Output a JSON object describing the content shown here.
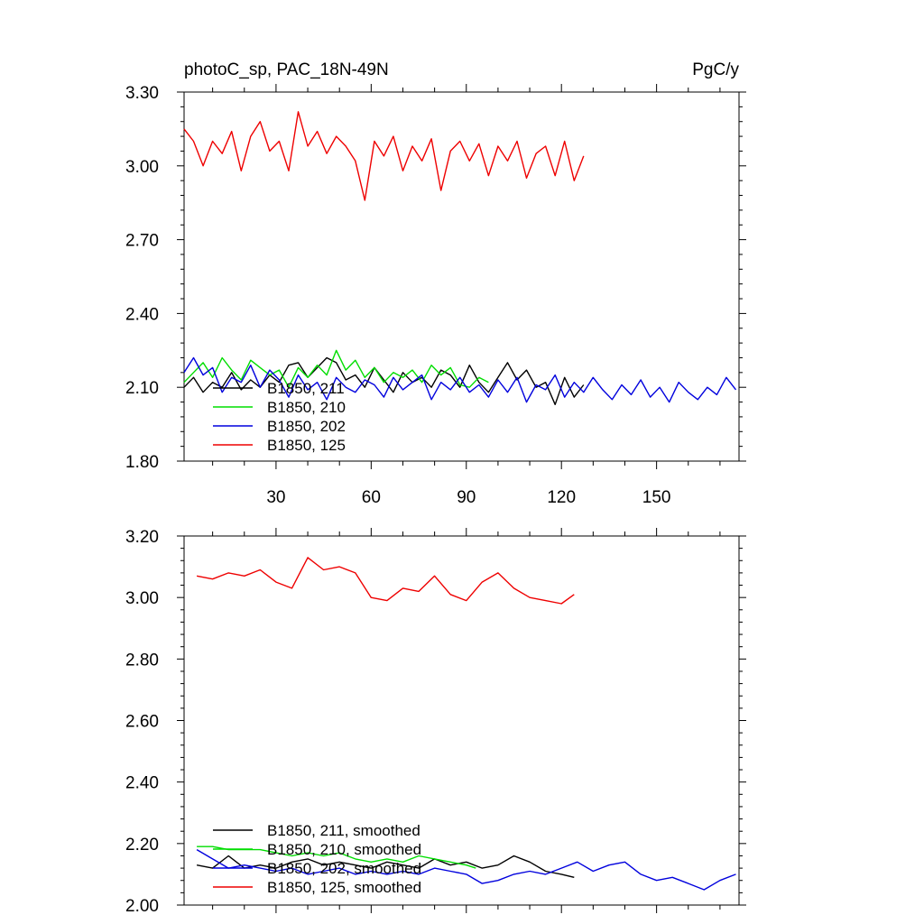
{
  "chart_data": [
    {
      "type": "line",
      "title_left": "photoC_sp, PAC_18N-49N",
      "title_right": "PgC/y",
      "xlabel": "",
      "ylabel": "",
      "xlim": [
        1,
        176
      ],
      "ylim": [
        1.8,
        3.3
      ],
      "yticks": [
        "1.80",
        "2.10",
        "2.40",
        "2.70",
        "3.00",
        "3.30"
      ],
      "xticks": [
        "30",
        "60",
        "90",
        "120",
        "150"
      ],
      "grid": false,
      "legend": "lower-left",
      "series": [
        {
          "name": "B1850, 211",
          "color": "#000000",
          "x": [
            1,
            4,
            7,
            10,
            13,
            16,
            19,
            22,
            25,
            28,
            31,
            34,
            37,
            40,
            43,
            46,
            49,
            52,
            55,
            58,
            61,
            64,
            67,
            70,
            73,
            76,
            79,
            82,
            85,
            88,
            91,
            94,
            97,
            100,
            103,
            106,
            109,
            112,
            115,
            118,
            121,
            124,
            127
          ],
          "y": [
            2.1,
            2.14,
            2.08,
            2.12,
            2.1,
            2.16,
            2.09,
            2.13,
            2.1,
            2.15,
            2.12,
            2.19,
            2.2,
            2.14,
            2.18,
            2.22,
            2.2,
            2.13,
            2.15,
            2.1,
            2.18,
            2.13,
            2.08,
            2.16,
            2.12,
            2.14,
            2.1,
            2.17,
            2.15,
            2.1,
            2.19,
            2.12,
            2.08,
            2.14,
            2.2,
            2.13,
            2.17,
            2.1,
            2.12,
            2.03,
            2.14,
            2.06,
            2.11
          ]
        },
        {
          "name": "B1850, 210",
          "color": "#00dd00",
          "x": [
            1,
            4,
            7,
            10,
            13,
            16,
            19,
            22,
            25,
            28,
            31,
            34,
            37,
            40,
            43,
            46,
            49,
            52,
            55,
            58,
            61,
            64,
            67,
            70,
            73,
            76,
            79,
            82,
            85,
            88,
            91,
            94,
            97
          ],
          "y": [
            2.12,
            2.16,
            2.2,
            2.14,
            2.22,
            2.17,
            2.13,
            2.21,
            2.18,
            2.15,
            2.17,
            2.1,
            2.18,
            2.14,
            2.19,
            2.15,
            2.25,
            2.17,
            2.21,
            2.14,
            2.18,
            2.12,
            2.16,
            2.14,
            2.17,
            2.12,
            2.19,
            2.15,
            2.18,
            2.11,
            2.1,
            2.14,
            2.12
          ]
        },
        {
          "name": "B1850, 202",
          "color": "#0000dd",
          "x": [
            1,
            4,
            7,
            10,
            13,
            16,
            19,
            22,
            25,
            28,
            31,
            34,
            37,
            40,
            43,
            46,
            49,
            52,
            55,
            58,
            61,
            64,
            67,
            70,
            73,
            76,
            79,
            82,
            85,
            88,
            91,
            94,
            97,
            100,
            103,
            106,
            109,
            112,
            115,
            118,
            121,
            124,
            127,
            130,
            133,
            136,
            139,
            142,
            145,
            148,
            151,
            154,
            157,
            160,
            163,
            166,
            169,
            172,
            175
          ],
          "y": [
            2.16,
            2.22,
            2.15,
            2.18,
            2.08,
            2.14,
            2.12,
            2.19,
            2.1,
            2.17,
            2.13,
            2.06,
            2.15,
            2.09,
            2.12,
            2.05,
            2.14,
            2.1,
            2.08,
            2.13,
            2.11,
            2.06,
            2.14,
            2.09,
            2.12,
            2.15,
            2.05,
            2.12,
            2.09,
            2.14,
            2.08,
            2.11,
            2.06,
            2.13,
            2.08,
            2.14,
            2.04,
            2.11,
            2.09,
            2.15,
            2.06,
            2.12,
            2.08,
            2.14,
            2.09,
            2.05,
            2.11,
            2.07,
            2.13,
            2.06,
            2.1,
            2.04,
            2.12,
            2.08,
            2.05,
            2.1,
            2.07,
            2.14,
            2.09
          ]
        },
        {
          "name": "B1850, 125",
          "color": "#ee0000",
          "x": [
            1,
            4,
            7,
            10,
            13,
            16,
            19,
            22,
            25,
            28,
            31,
            34,
            37,
            40,
            43,
            46,
            49,
            52,
            55,
            58,
            61,
            64,
            67,
            70,
            73,
            76,
            79,
            82,
            85,
            88,
            91,
            94,
            97,
            100,
            103,
            106,
            109,
            112,
            115,
            118,
            121,
            124,
            127
          ],
          "y": [
            3.15,
            3.1,
            3.0,
            3.1,
            3.05,
            3.14,
            2.98,
            3.12,
            3.18,
            3.06,
            3.1,
            2.98,
            3.22,
            3.08,
            3.14,
            3.05,
            3.12,
            3.08,
            3.02,
            2.86,
            3.1,
            3.04,
            3.12,
            2.98,
            3.08,
            3.02,
            3.11,
            2.9,
            3.06,
            3.1,
            3.02,
            3.09,
            2.96,
            3.08,
            3.02,
            3.1,
            2.95,
            3.05,
            3.08,
            2.96,
            3.1,
            2.94,
            3.04
          ]
        }
      ]
    },
    {
      "type": "line",
      "title_left": "",
      "title_right": "",
      "xlabel": "",
      "ylabel": "",
      "xlim": [
        1,
        176
      ],
      "ylim": [
        2.0,
        3.2
      ],
      "yticks": [
        "2.00",
        "2.20",
        "2.40",
        "2.60",
        "2.80",
        "3.00",
        "3.20"
      ],
      "xticks": [],
      "grid": false,
      "legend": "lower-left",
      "series": [
        {
          "name": "B1850, 211, smoothed",
          "color": "#000000",
          "x": [
            5,
            10,
            15,
            20,
            25,
            30,
            35,
            40,
            45,
            50,
            55,
            60,
            65,
            70,
            75,
            80,
            85,
            90,
            95,
            100,
            105,
            110,
            115,
            120,
            124
          ],
          "y": [
            2.13,
            2.12,
            2.16,
            2.12,
            2.13,
            2.12,
            2.14,
            2.15,
            2.13,
            2.14,
            2.13,
            2.12,
            2.14,
            2.13,
            2.12,
            2.15,
            2.13,
            2.14,
            2.12,
            2.13,
            2.16,
            2.14,
            2.11,
            2.1,
            2.09
          ]
        },
        {
          "name": "B1850, 210, smoothed",
          "color": "#00dd00",
          "x": [
            5,
            10,
            15,
            20,
            25,
            30,
            35,
            40,
            45,
            50,
            55,
            60,
            65,
            70,
            75,
            80,
            85,
            90,
            93
          ],
          "y": [
            2.19,
            2.19,
            2.18,
            2.18,
            2.18,
            2.17,
            2.16,
            2.17,
            2.16,
            2.17,
            2.15,
            2.14,
            2.15,
            2.14,
            2.16,
            2.15,
            2.14,
            2.13,
            2.12
          ]
        },
        {
          "name": "B1850, 202, smoothed",
          "color": "#0000dd",
          "x": [
            5,
            10,
            15,
            20,
            25,
            30,
            35,
            40,
            45,
            50,
            55,
            60,
            65,
            70,
            75,
            80,
            85,
            90,
            95,
            100,
            105,
            110,
            115,
            120,
            125,
            130,
            135,
            140,
            145,
            150,
            155,
            160,
            165,
            170,
            175
          ],
          "y": [
            2.18,
            2.15,
            2.12,
            2.13,
            2.12,
            2.11,
            2.12,
            2.1,
            2.11,
            2.12,
            2.1,
            2.11,
            2.1,
            2.11,
            2.1,
            2.12,
            2.11,
            2.1,
            2.07,
            2.08,
            2.1,
            2.11,
            2.1,
            2.12,
            2.14,
            2.11,
            2.13,
            2.14,
            2.1,
            2.08,
            2.09,
            2.07,
            2.05,
            2.08,
            2.1
          ]
        },
        {
          "name": "B1850, 125, smoothed",
          "color": "#ee0000",
          "x": [
            5,
            10,
            15,
            20,
            25,
            30,
            35,
            40,
            45,
            50,
            55,
            60,
            65,
            70,
            75,
            80,
            85,
            90,
            95,
            100,
            105,
            110,
            115,
            120,
            124
          ],
          "y": [
            3.07,
            3.06,
            3.08,
            3.07,
            3.09,
            3.05,
            3.03,
            3.13,
            3.09,
            3.1,
            3.08,
            3.0,
            2.99,
            3.03,
            3.02,
            3.07,
            3.01,
            2.99,
            3.05,
            3.08,
            3.03,
            3.0,
            2.99,
            2.98,
            3.01
          ]
        }
      ]
    }
  ]
}
